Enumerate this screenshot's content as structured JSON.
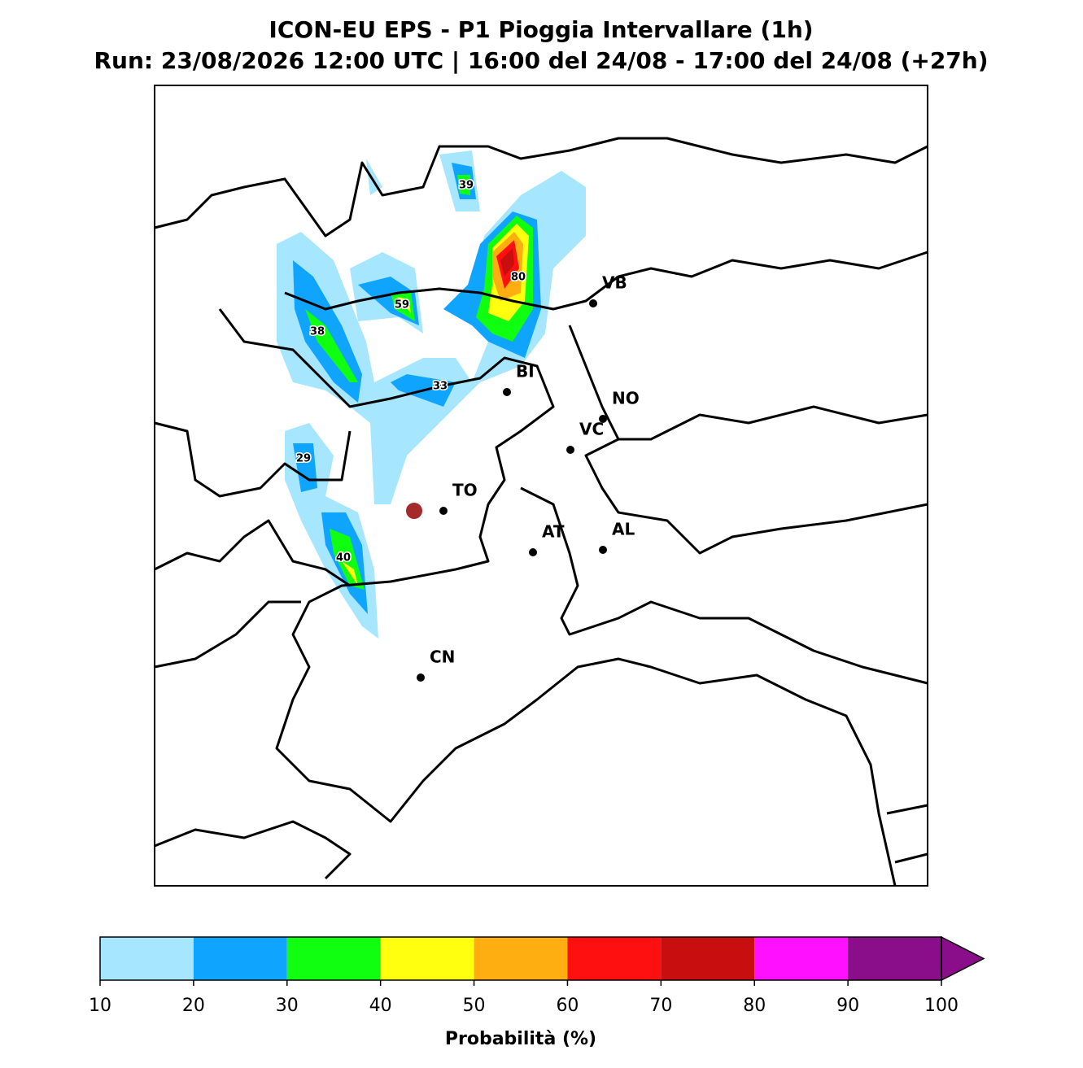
{
  "title": "ICON-EU EPS - P1 Pioggia Intervallare (1h)",
  "subtitle": "Run: 23/08/2026 12:00 UTC | 16:00 del 24/08 - 17:00 del 24/08 (+27h)",
  "cities": [
    "VB",
    "BI",
    "NO",
    "VC",
    "TO",
    "AT",
    "AL",
    "CN"
  ],
  "max_labels": [
    39,
    80,
    59,
    38,
    33,
    29,
    40
  ],
  "colorbar": {
    "label": "Probabilità (%)",
    "ticks": [
      10,
      20,
      30,
      40,
      50,
      60,
      70,
      80,
      90,
      100
    ],
    "colors": [
      "#a6e6ff",
      "#0fa5ff",
      "#10ff10",
      "#ffff10",
      "#ffae12",
      "#ff1010",
      "#c80e0e",
      "#ff10ff",
      "#8a0e8a"
    ],
    "lim": [
      10,
      100
    ]
  }
}
